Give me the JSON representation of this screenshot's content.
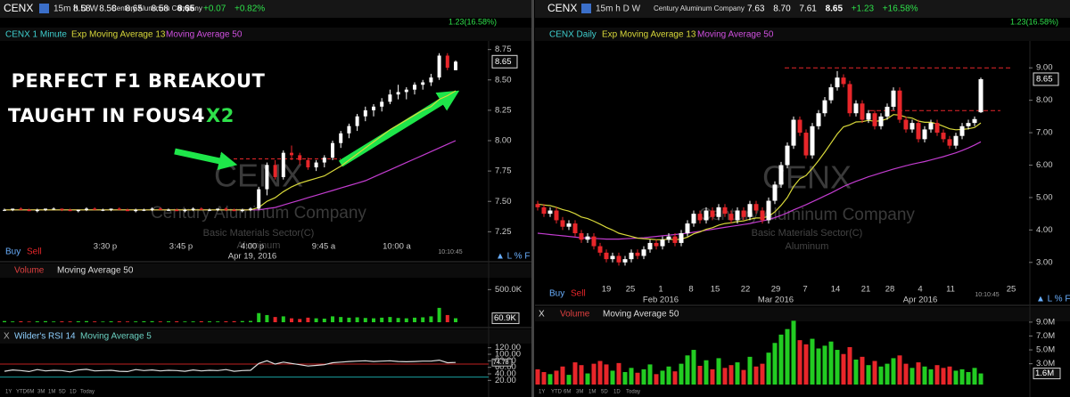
{
  "left": {
    "symbol": "CENX",
    "timeframes": "15m h D W",
    "company": "Century Aluminum Company",
    "quote": [
      "8.58",
      "8.58",
      "8.65",
      "8.58",
      "8.65",
      "+0.07",
      "+0.82%"
    ],
    "day_change": "1.23(16.58%)",
    "legend": [
      "CENX 1 Minute",
      "Exp Moving Average 13",
      "Moving Average 50"
    ],
    "annotation": [
      "PERFECT F1 BREAKOUT",
      "TAUGHT IN FOUS4",
      "X2"
    ],
    "watermark": {
      "symbol": "CENX",
      "company": "Century Aluminum Company",
      "sector": "Basic Materials Sector(C)",
      "industry": "Aluminum"
    },
    "ylim": [
      7.15,
      8.85
    ],
    "yticks": [
      8.75,
      {
        "value": 8.5,
        "label": "8.50"
      },
      8.25,
      {
        "value": 8,
        "label": "8.00"
      },
      7.75,
      {
        "value": 7.5,
        "label": "7.50"
      },
      7.25
    ],
    "last_price": 8.65,
    "xlabels": [
      "3:30 p",
      "3:45 p",
      "4:00 p",
      "9:45 a",
      "10:00 a"
    ],
    "date": "Apr 19, 2016",
    "clock": "10:10:45",
    "buy": "Buy",
    "sell": "Sell",
    "colors": {
      "up": "#ffffff",
      "down": "#e8262a",
      "ema": "#d8d83a",
      "ma": "#c23ccf",
      "vol_up": "#22cc22",
      "vol_down": "#e8262a",
      "level": "#e8262a"
    },
    "level": 7.85,
    "candles": [
      [
        7.43,
        7.44,
        7.42,
        7.43
      ],
      [
        7.43,
        7.44,
        7.42,
        7.44
      ],
      [
        7.44,
        7.45,
        7.43,
        7.43
      ],
      [
        7.43,
        7.44,
        7.42,
        7.42
      ],
      [
        7.42,
        7.44,
        7.41,
        7.43
      ],
      [
        7.43,
        7.44,
        7.42,
        7.44
      ],
      [
        7.44,
        7.45,
        7.43,
        7.44
      ],
      [
        7.44,
        7.44,
        7.42,
        7.43
      ],
      [
        7.43,
        7.44,
        7.42,
        7.42
      ],
      [
        7.42,
        7.43,
        7.41,
        7.43
      ],
      [
        7.43,
        7.45,
        7.42,
        7.44
      ],
      [
        7.44,
        7.45,
        7.43,
        7.43
      ],
      [
        7.43,
        7.44,
        7.42,
        7.43
      ],
      [
        7.43,
        7.44,
        7.42,
        7.44
      ],
      [
        7.44,
        7.45,
        7.43,
        7.43
      ],
      [
        7.43,
        7.44,
        7.42,
        7.42
      ],
      [
        7.42,
        7.44,
        7.41,
        7.43
      ],
      [
        7.43,
        7.44,
        7.42,
        7.43
      ],
      [
        7.43,
        7.45,
        7.42,
        7.44
      ],
      [
        7.44,
        7.45,
        7.43,
        7.43
      ],
      [
        7.43,
        7.44,
        7.42,
        7.43
      ],
      [
        7.43,
        7.44,
        7.42,
        7.42
      ],
      [
        7.42,
        7.44,
        7.41,
        7.43
      ],
      [
        7.43,
        7.45,
        7.42,
        7.44
      ],
      [
        7.44,
        7.45,
        7.43,
        7.43
      ],
      [
        7.43,
        7.44,
        7.42,
        7.43
      ],
      [
        7.43,
        7.44,
        7.42,
        7.44
      ],
      [
        7.44,
        7.45,
        7.42,
        7.43
      ],
      [
        7.43,
        7.44,
        7.42,
        7.42
      ],
      [
        7.42,
        7.44,
        7.41,
        7.43
      ],
      [
        7.43,
        7.45,
        7.42,
        7.44
      ],
      [
        7.44,
        7.62,
        7.43,
        7.6
      ],
      [
        7.6,
        7.82,
        7.55,
        7.8
      ],
      [
        7.8,
        7.84,
        7.68,
        7.7
      ],
      [
        7.7,
        7.92,
        7.68,
        7.9
      ],
      [
        7.9,
        7.96,
        7.84,
        7.88
      ],
      [
        7.88,
        7.9,
        7.8,
        7.84
      ],
      [
        7.84,
        7.86,
        7.76,
        7.78
      ],
      [
        7.78,
        7.84,
        7.75,
        7.82
      ],
      [
        7.82,
        7.88,
        7.78,
        7.86
      ],
      [
        7.86,
        8.0,
        7.84,
        7.98
      ],
      [
        7.98,
        8.08,
        7.94,
        8.06
      ],
      [
        8.06,
        8.14,
        8.02,
        8.12
      ],
      [
        8.12,
        8.22,
        8.08,
        8.2
      ],
      [
        8.2,
        8.28,
        8.16,
        8.25
      ],
      [
        8.25,
        8.3,
        8.2,
        8.28
      ],
      [
        8.28,
        8.35,
        8.24,
        8.32
      ],
      [
        8.32,
        8.42,
        8.3,
        8.38
      ],
      [
        8.38,
        8.46,
        8.34,
        8.4
      ],
      [
        8.4,
        8.44,
        8.34,
        8.42
      ],
      [
        8.42,
        8.48,
        8.38,
        8.46
      ],
      [
        8.46,
        8.5,
        8.42,
        8.48
      ],
      [
        8.48,
        8.55,
        8.45,
        8.52
      ],
      [
        8.52,
        8.72,
        8.5,
        8.7
      ],
      [
        8.7,
        8.72,
        8.58,
        8.6
      ],
      [
        8.58,
        8.66,
        8.58,
        8.65
      ]
    ],
    "ema13": [
      7.43,
      7.43,
      7.43,
      7.43,
      7.43,
      7.43,
      7.43,
      7.43,
      7.43,
      7.43,
      7.43,
      7.43,
      7.43,
      7.43,
      7.43,
      7.43,
      7.43,
      7.43,
      7.43,
      7.43,
      7.43,
      7.43,
      7.43,
      7.43,
      7.43,
      7.43,
      7.43,
      7.43,
      7.43,
      7.43,
      7.43,
      7.45,
      7.5,
      7.53,
      7.58,
      7.62,
      7.65,
      7.67,
      7.69,
      7.71,
      7.75,
      7.79,
      7.84,
      7.89,
      7.94,
      7.99,
      8.04,
      8.09,
      8.13,
      8.17,
      8.21,
      8.25,
      8.28,
      8.34,
      8.37,
      8.41
    ],
    "ma50": [
      7.43,
      7.43,
      7.43,
      7.43,
      7.43,
      7.43,
      7.43,
      7.43,
      7.43,
      7.43,
      7.43,
      7.43,
      7.43,
      7.43,
      7.43,
      7.43,
      7.43,
      7.43,
      7.43,
      7.43,
      7.43,
      7.43,
      7.43,
      7.43,
      7.43,
      7.43,
      7.43,
      7.43,
      7.43,
      7.43,
      7.43,
      7.43,
      7.44,
      7.45,
      7.47,
      7.49,
      7.51,
      7.53,
      7.55,
      7.57,
      7.59,
      7.61,
      7.63,
      7.65,
      7.67,
      7.7,
      7.73,
      7.76,
      7.79,
      7.82,
      7.85,
      7.88,
      7.91,
      7.94,
      7.97,
      8.0
    ],
    "volume": {
      "title": "Volume",
      "legend": "Moving Average 50",
      "ylim": [
        0,
        600000
      ],
      "yticks": [
        {
          "value": 500000,
          "label": "500.0K"
        }
      ],
      "last": {
        "value": 60900,
        "label": "60.9K"
      },
      "values": [
        18000,
        12000,
        15000,
        10000,
        14000,
        16000,
        11000,
        13000,
        12000,
        15000,
        17000,
        12000,
        10000,
        14000,
        13000,
        11000,
        12000,
        15000,
        16000,
        12000,
        13000,
        14000,
        11000,
        12000,
        15000,
        13000,
        12000,
        14000,
        16000,
        18000,
        20000,
        140000,
        110000,
        80000,
        90000,
        60000,
        50000,
        70000,
        60000,
        55000,
        90000,
        80000,
        70000,
        75000,
        65000,
        60000,
        70000,
        80000,
        65000,
        60000,
        70000,
        75000,
        90000,
        220000,
        110000,
        60900
      ]
    },
    "rsi": {
      "title": "Wilder's RSI 14",
      "legend": "Moving Average 5",
      "ylim": [
        10,
        130
      ],
      "yticks": [
        {
          "value": 120,
          "label": "120.00"
        },
        {
          "value": 100,
          "label": "100.00"
        },
        {
          "value": 80,
          "label": "80.00"
        },
        {
          "value": 60,
          "label": "60.00"
        },
        {
          "value": 40,
          "label": "40.00"
        },
        {
          "value": 20,
          "label": "20.00"
        }
      ],
      "last": 74.78,
      "values": [
        48,
        52,
        50,
        47,
        53,
        49,
        51,
        50,
        46,
        52,
        54,
        49,
        50,
        51,
        48,
        47,
        53,
        50,
        52,
        49,
        51,
        50,
        48,
        52,
        49,
        51,
        50,
        53,
        48,
        50,
        51,
        72,
        80,
        70,
        76,
        72,
        68,
        64,
        66,
        68,
        74,
        76,
        78,
        79,
        80,
        78,
        79,
        80,
        78,
        77,
        78,
        79,
        79,
        82,
        74,
        74.78
      ]
    },
    "ranges": [
      "1Y",
      "YTD",
      "6M",
      "3M",
      "1M",
      "5D",
      "1D",
      "Today"
    ]
  },
  "right": {
    "symbol": "CENX",
    "timeframes": "15m h D W",
    "company": "Century Aluminum Company",
    "quote": [
      "7.63",
      "8.70",
      "7.61",
      "8.65",
      "+1.23",
      "+16.58%"
    ],
    "day_change": "1.23(16.58%)",
    "legend": [
      "CENX Daily",
      "Exp Moving Average 13",
      "Moving Average 50"
    ],
    "watermark": {
      "symbol": "CENX",
      "company": "Century Aluminum Company",
      "sector": "Basic Materials Sector(C)",
      "industry": "Aluminum"
    },
    "ylim": [
      2.5,
      9.5
    ],
    "yticks": [
      {
        "value": 9,
        "label": "9.00"
      },
      {
        "value": 8,
        "label": "8.00"
      },
      {
        "value": 7,
        "label": "7.00"
      },
      {
        "value": 6,
        "label": "6.00"
      },
      {
        "value": 5,
        "label": "5.00"
      },
      {
        "value": 4,
        "label": "4.00"
      },
      {
        "value": 3,
        "label": "3.00"
      }
    ],
    "last_price": 8.65,
    "xlabels": [
      "19",
      "25",
      "1",
      "8",
      "15",
      "22",
      "29",
      "7",
      "14",
      "21",
      "28",
      "4",
      "11",
      "25"
    ],
    "months": [
      "Feb 2016",
      "Mar 2016",
      "Apr 2016"
    ],
    "clock": "10:10:45",
    "buy": "Buy",
    "sell": "Sell",
    "colors": {
      "up": "#ffffff",
      "down": "#e8262a",
      "ema": "#d8d83a",
      "ma": "#c23ccf",
      "vol_up": "#22cc22",
      "vol_down": "#e8262a",
      "level": "#e8262a"
    },
    "levels": [
      9.0,
      7.68
    ],
    "candles": [
      [
        4.8,
        4.9,
        4.6,
        4.7
      ],
      [
        4.7,
        4.8,
        4.4,
        4.5
      ],
      [
        4.5,
        4.7,
        4.4,
        4.6
      ],
      [
        4.6,
        4.7,
        4.2,
        4.3
      ],
      [
        4.3,
        4.4,
        4.0,
        4.1
      ],
      [
        4.1,
        4.3,
        4.0,
        4.2
      ],
      [
        4.2,
        4.3,
        3.8,
        3.9
      ],
      [
        3.9,
        4.0,
        3.6,
        3.7
      ],
      [
        3.7,
        3.9,
        3.6,
        3.8
      ],
      [
        3.8,
        3.9,
        3.4,
        3.5
      ],
      [
        3.5,
        3.6,
        3.2,
        3.3
      ],
      [
        3.3,
        3.4,
        3.0,
        3.1
      ],
      [
        3.1,
        3.3,
        3.0,
        3.2
      ],
      [
        3.2,
        3.3,
        2.9,
        3.0
      ],
      [
        3.0,
        3.2,
        2.9,
        3.1
      ],
      [
        3.1,
        3.4,
        3.0,
        3.3
      ],
      [
        3.3,
        3.4,
        3.1,
        3.2
      ],
      [
        3.2,
        3.5,
        3.1,
        3.4
      ],
      [
        3.4,
        3.7,
        3.3,
        3.6
      ],
      [
        3.6,
        3.7,
        3.4,
        3.5
      ],
      [
        3.5,
        3.8,
        3.4,
        3.7
      ],
      [
        3.7,
        3.9,
        3.6,
        3.8
      ],
      [
        3.8,
        3.9,
        3.5,
        3.6
      ],
      [
        3.6,
        4.0,
        3.5,
        3.9
      ],
      [
        3.9,
        4.3,
        3.8,
        4.2
      ],
      [
        4.2,
        4.6,
        4.1,
        4.5
      ],
      [
        4.5,
        4.6,
        4.2,
        4.3
      ],
      [
        4.3,
        4.7,
        4.2,
        4.6
      ],
      [
        4.6,
        4.7,
        4.3,
        4.4
      ],
      [
        4.4,
        4.8,
        4.3,
        4.7
      ],
      [
        4.7,
        4.8,
        4.4,
        4.5
      ],
      [
        4.5,
        4.6,
        4.2,
        4.3
      ],
      [
        4.3,
        4.7,
        4.2,
        4.6
      ],
      [
        4.6,
        4.7,
        4.3,
        4.4
      ],
      [
        4.4,
        4.9,
        4.3,
        4.8
      ],
      [
        4.8,
        4.9,
        4.5,
        4.6
      ],
      [
        4.6,
        4.7,
        4.2,
        4.3
      ],
      [
        4.3,
        5.0,
        4.2,
        4.9
      ],
      [
        4.9,
        5.5,
        4.8,
        5.4
      ],
      [
        5.4,
        6.1,
        5.3,
        6.0
      ],
      [
        6.0,
        6.7,
        5.9,
        6.6
      ],
      [
        6.6,
        7.5,
        6.5,
        7.4
      ],
      [
        7.4,
        7.5,
        6.9,
        7.0
      ],
      [
        7.0,
        7.1,
        6.2,
        6.3
      ],
      [
        6.3,
        7.3,
        6.2,
        7.2
      ],
      [
        7.2,
        7.7,
        7.1,
        7.6
      ],
      [
        7.6,
        8.1,
        7.5,
        8.0
      ],
      [
        8.0,
        8.5,
        7.9,
        8.4
      ],
      [
        8.4,
        8.9,
        8.3,
        8.7
      ],
      [
        8.7,
        8.8,
        8.4,
        8.5
      ],
      [
        8.5,
        8.6,
        7.5,
        7.6
      ],
      [
        7.6,
        8.0,
        7.5,
        7.9
      ],
      [
        7.9,
        8.0,
        7.3,
        7.4
      ],
      [
        7.4,
        7.7,
        7.3,
        7.6
      ],
      [
        7.6,
        7.7,
        7.1,
        7.2
      ],
      [
        7.2,
        7.6,
        7.1,
        7.5
      ],
      [
        7.5,
        7.9,
        7.4,
        7.8
      ],
      [
        7.8,
        8.4,
        7.7,
        8.3
      ],
      [
        8.3,
        8.4,
        7.3,
        7.4
      ],
      [
        7.4,
        7.5,
        7.0,
        7.1
      ],
      [
        7.1,
        7.4,
        7.0,
        7.3
      ],
      [
        7.3,
        7.4,
        6.7,
        6.8
      ],
      [
        6.8,
        7.2,
        6.7,
        7.1
      ],
      [
        7.1,
        7.4,
        7.0,
        7.3
      ],
      [
        7.3,
        7.4,
        6.9,
        7.0
      ],
      [
        7.0,
        7.1,
        6.7,
        6.8
      ],
      [
        6.8,
        6.9,
        6.5,
        6.6
      ],
      [
        6.6,
        7.0,
        6.5,
        6.9
      ],
      [
        6.9,
        7.3,
        6.8,
        7.2
      ],
      [
        7.2,
        7.4,
        7.1,
        7.3
      ],
      [
        7.3,
        7.5,
        7.2,
        7.42
      ],
      [
        7.63,
        8.7,
        7.61,
        8.65
      ]
    ],
    "ema13": [
      4.8,
      4.77,
      4.75,
      4.7,
      4.63,
      4.58,
      4.5,
      4.4,
      4.35,
      4.27,
      4.18,
      4.08,
      4.0,
      3.9,
      3.85,
      3.8,
      3.75,
      3.73,
      3.72,
      3.7,
      3.7,
      3.72,
      3.7,
      3.72,
      3.78,
      3.88,
      3.94,
      4.02,
      4.07,
      4.15,
      4.2,
      4.22,
      4.26,
      4.28,
      4.33,
      4.37,
      4.37,
      4.42,
      4.56,
      4.76,
      5.0,
      5.34,
      5.58,
      5.68,
      5.9,
      6.14,
      6.4,
      6.68,
      6.96,
      7.18,
      7.24,
      7.33,
      7.34,
      7.38,
      7.35,
      7.37,
      7.43,
      7.56,
      7.54,
      7.48,
      7.45,
      7.36,
      7.32,
      7.32,
      7.27,
      7.2,
      7.12,
      7.09,
      7.1,
      7.12,
      7.16,
      7.3
    ],
    "ma50": [
      3.9,
      3.88,
      3.86,
      3.84,
      3.82,
      3.8,
      3.78,
      3.76,
      3.75,
      3.74,
      3.73,
      3.72,
      3.72,
      3.72,
      3.73,
      3.74,
      3.75,
      3.76,
      3.78,
      3.8,
      3.82,
      3.84,
      3.86,
      3.88,
      3.9,
      3.93,
      3.96,
      3.99,
      4.02,
      4.05,
      4.08,
      4.11,
      4.14,
      4.17,
      4.2,
      4.24,
      4.28,
      4.32,
      4.38,
      4.45,
      4.53,
      4.62,
      4.7,
      4.78,
      4.87,
      4.96,
      5.05,
      5.14,
      5.24,
      5.34,
      5.42,
      5.5,
      5.57,
      5.64,
      5.7,
      5.76,
      5.82,
      5.88,
      5.93,
      5.98,
      6.03,
      6.07,
      6.11,
      6.16,
      6.21,
      6.26,
      6.32,
      6.38,
      6.45,
      6.53,
      6.62,
      6.72
    ],
    "volume": {
      "title": "Volume",
      "legend": "Moving Average 50",
      "ylim": [
        0,
        9500000
      ],
      "yticks": [
        {
          "value": 9000000,
          "label": "9.0M"
        },
        {
          "value": 7000000,
          "label": "7.0M"
        },
        {
          "value": 5000000,
          "label": "5.0M"
        },
        {
          "value": 3000000,
          "label": "3.0M"
        }
      ],
      "last": {
        "value": 1600000,
        "label": "1.6M"
      },
      "values": [
        2200000.0,
        1800000.0,
        1500000.0,
        2000000.0,
        2600000.0,
        1400000.0,
        3200000.0,
        2800000.0,
        1600000.0,
        3000000.0,
        3400000.0,
        2900000.0,
        2000000.0,
        3100000.0,
        1800000.0,
        2400000.0,
        1700000.0,
        2200000.0,
        2900000.0,
        1500000.0,
        2000000.0,
        2600000.0,
        1900000.0,
        3000000.0,
        4200000.0,
        5000000.0,
        2700000.0,
        3500000.0,
        2200000.0,
        3800000.0,
        2400000.0,
        2800000.0,
        3200000.0,
        2100000.0,
        4000000.0,
        2600000.0,
        3000000.0,
        4600000.0,
        6000000.0,
        7200000.0,
        8000000.0,
        9200000.0,
        6400000.0,
        5800000.0,
        6600000.0,
        5200000.0,
        5600000.0,
        6200000.0,
        5000000.0,
        4400000.0,
        5400000.0,
        3600000.0,
        4000000.0,
        2800000.0,
        3400000.0,
        2600000.0,
        3000000.0,
        3800000.0,
        4200000.0,
        3000000.0,
        2400000.0,
        3200000.0,
        2600000.0,
        2200000.0,
        2800000.0,
        2400000.0,
        2600000.0,
        2000000.0,
        2200000.0,
        1800000.0,
        2400000.0,
        1600000.0
      ]
    },
    "ranges": [
      "1Y",
      "YTD",
      "6M",
      "3M",
      "1M",
      "5D",
      "1D",
      "Today"
    ]
  }
}
